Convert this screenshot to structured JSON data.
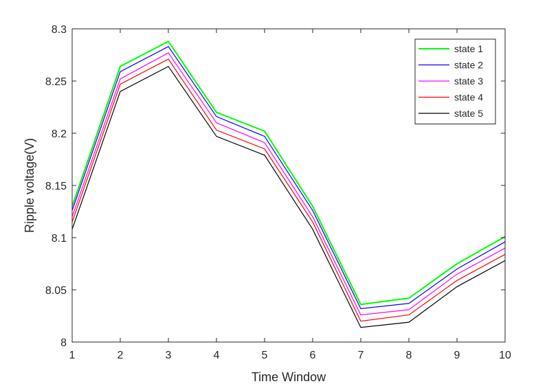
{
  "chart_data": {
    "type": "line",
    "title": "",
    "xlabel": "Time Window",
    "ylabel": "Ripple voltage(V)",
    "x": [
      1,
      2,
      3,
      4,
      5,
      6,
      7,
      8,
      9,
      10
    ],
    "xlim": [
      1,
      10
    ],
    "ylim": [
      8.0,
      8.3
    ],
    "xticks": [
      "1",
      "2",
      "3",
      "4",
      "5",
      "6",
      "7",
      "8",
      "9",
      "10"
    ],
    "yticks": [
      "8",
      "8.05",
      "8.1",
      "8.15",
      "8.2",
      "8.25",
      "8.3"
    ],
    "grid": false,
    "legend_position": "top-right",
    "series": [
      {
        "name": "state 1",
        "color": "#00ff00",
        "values": [
          8.13,
          8.264,
          8.288,
          8.22,
          8.202,
          8.13,
          8.036,
          8.042,
          8.075,
          8.101
        ]
      },
      {
        "name": "state 2",
        "color": "#0000ff",
        "values": [
          8.126,
          8.259,
          8.283,
          8.216,
          8.197,
          8.126,
          8.032,
          8.037,
          8.07,
          8.096
        ]
      },
      {
        "name": "state 3",
        "color": "#ff00ff",
        "values": [
          8.12,
          8.252,
          8.277,
          8.21,
          8.191,
          8.12,
          8.026,
          8.031,
          8.065,
          8.09
        ]
      },
      {
        "name": "state 4",
        "color": "#ff0000",
        "values": [
          8.115,
          8.247,
          8.271,
          8.203,
          8.185,
          8.115,
          8.02,
          8.026,
          8.059,
          8.084
        ]
      },
      {
        "name": "state 5",
        "color": "#000000",
        "values": [
          8.108,
          8.24,
          8.264,
          8.197,
          8.179,
          8.108,
          8.014,
          8.019,
          8.053,
          8.078
        ]
      }
    ]
  }
}
